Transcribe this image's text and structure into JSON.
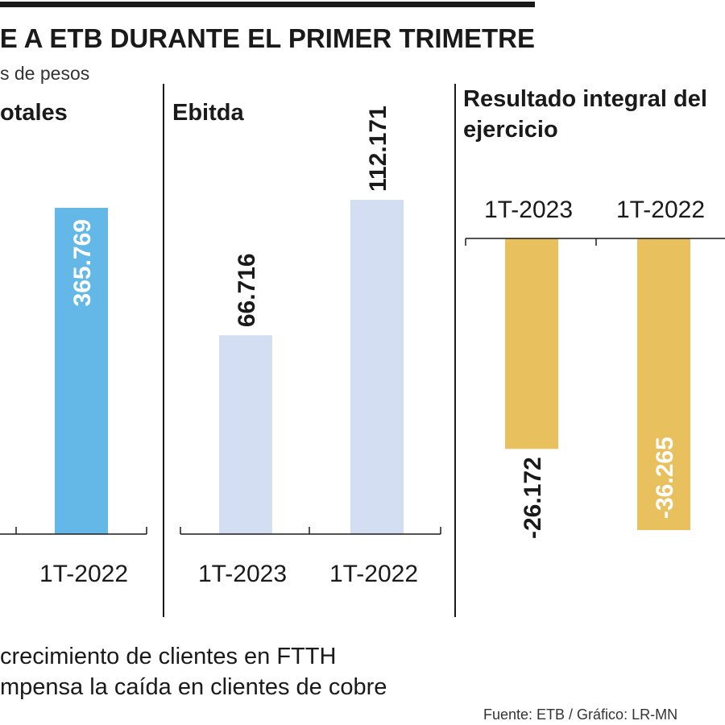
{
  "header": {
    "title": "E A ETB DURANTE EL PRIMER TRIMETRE",
    "subtitle": "s de pesos"
  },
  "footer": {
    "line1": "crecimiento de clientes en FTTH",
    "line2": "mpensa la caída en clientes de cobre",
    "source": "Fuente: ETB / Gráfico: LR-MN"
  },
  "chart_data": [
    {
      "type": "bar",
      "title": "otales",
      "categories": [
        "1T-2022"
      ],
      "values": [
        365.769
      ],
      "value_labels": [
        "365.769"
      ],
      "color": "#63b8e8",
      "label_color": "#ffffff"
    },
    {
      "type": "bar",
      "title": "Ebitda",
      "categories": [
        "1T-2023",
        "1T-2022"
      ],
      "values": [
        66.716,
        112.171
      ],
      "value_labels": [
        "66.716",
        "112.171"
      ],
      "color": "#d3def2",
      "label_color": "#1a1a1a"
    },
    {
      "type": "bar",
      "title": "Resultado integral del ejercicio",
      "categories": [
        "1T-2023",
        "1T-2022"
      ],
      "values": [
        -26.172,
        -36.265
      ],
      "value_labels": [
        "-26.172",
        "-36.265"
      ],
      "color": "#e8c15e",
      "label_colors": [
        "#1a1a1a",
        "#ffffff"
      ]
    }
  ]
}
